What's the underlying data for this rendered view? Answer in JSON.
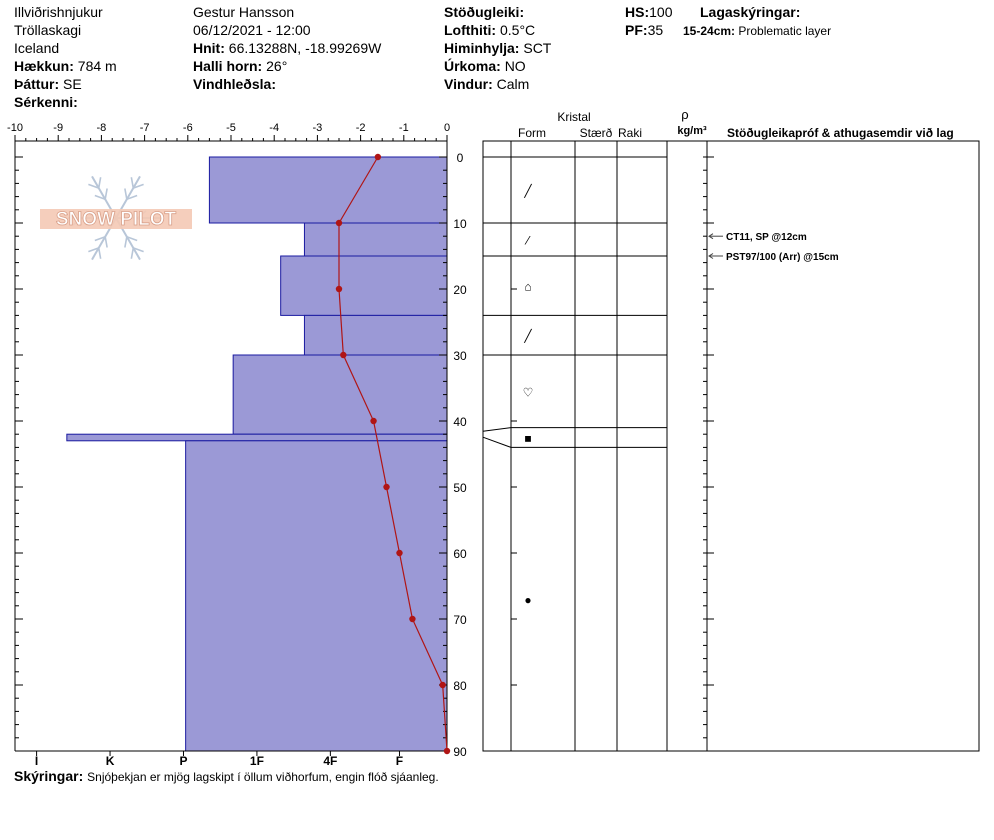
{
  "header": {
    "location": "Illviðrishnjukur",
    "region": "Tröllaskagi",
    "country": "Iceland",
    "elevation_label": "Hækkun:",
    "elevation_value": "784 m",
    "aspect_label": "Þáttur:",
    "aspect_value": "SE",
    "features_label": "Sérkenni:",
    "observer": "Gestur Hansson",
    "datetime": "06/12/2021 - 12:00",
    "coords_label": "Hnit:",
    "coords_value": "66.13288N, -18.99269W",
    "slope_label": "Halli horn:",
    "slope_value": "26°",
    "wind_loading_label": "Vindhleðsla:",
    "stability_label": "Stöðugleiki:",
    "air_temp_label": "Lofthiti:",
    "air_temp_value": "0.5°C",
    "sky_label": "Himinhylja:",
    "sky_value": "SCT",
    "precip_label": "Úrkoma:",
    "precip_value": "NO",
    "wind_label": "Vindur:",
    "wind_value": "Calm",
    "hs_label": "HS:",
    "hs_value": "100",
    "pf_label": "PF:",
    "pf_value": "35",
    "layer_notes_label": "Lagaskýringar:",
    "layer_note_range": "15-24cm:",
    "layer_note_text": "Problematic layer"
  },
  "columns": {
    "crystal": "Kristal",
    "form": "Form",
    "size": "Stærð",
    "moisture": "Raki",
    "density_symbol": "ρ",
    "density_unit": "kg/m³",
    "tests": "Stöðugleikapróf & athugasemdir við lag"
  },
  "logo_text": "SNOW PILOT",
  "tests": [
    {
      "label": "CT11, SP @12cm",
      "depth": 12
    },
    {
      "label": "PST97/100 (Arr) @15cm",
      "depth": 15
    }
  ],
  "crystal_symbols": [
    {
      "symbol": "╱",
      "depth": 5
    },
    {
      "symbol": "⁄",
      "depth": 12.5
    },
    {
      "symbol": "⌂",
      "depth": 19.5
    },
    {
      "symbol": "╱",
      "depth": 27
    },
    {
      "symbol": "♡",
      "depth": 35.5
    },
    {
      "symbol": "■",
      "depth": 42.5
    },
    {
      "symbol": "●",
      "depth": 67
    }
  ],
  "layer_boundaries": [
    0,
    10,
    15,
    24,
    30,
    41,
    44,
    90
  ],
  "footer": {
    "label": "Skýringar:",
    "text": "Snjóþekjan er mjög lagskipt í öllum viðhorfum, engin flóð sjáanleg."
  },
  "chart_data": {
    "type": "area",
    "top_axis_ticks": [
      "-10",
      "-9",
      "-8",
      "-7",
      "-6",
      "-5",
      "-4",
      "-3",
      "-2",
      "-1",
      "0"
    ],
    "temperature_xlim": [
      -10,
      0
    ],
    "hardness_ticks": [
      "I",
      "K",
      "P",
      "1F",
      "4F",
      "F"
    ],
    "depth_ticks": [
      "0",
      "10",
      "20",
      "30",
      "40",
      "50",
      "60",
      "70",
      "80",
      "90"
    ],
    "depth_ylim": [
      0,
      90
    ],
    "hardness_profile": [
      {
        "top": 0,
        "bottom": 10,
        "temp_equiv": -5.5
      },
      {
        "top": 10,
        "bottom": 15,
        "temp_equiv": -3.3
      },
      {
        "top": 15,
        "bottom": 24,
        "temp_equiv": -3.85
      },
      {
        "top": 24,
        "bottom": 30,
        "temp_equiv": -3.3
      },
      {
        "top": 30,
        "bottom": 42,
        "temp_equiv": -4.95
      },
      {
        "top": 42,
        "bottom": 43,
        "temp_equiv": -8.8
      },
      {
        "top": 43,
        "bottom": 90,
        "temp_equiv": -6.05
      }
    ],
    "temperature_profile": {
      "depth": [
        0,
        10,
        20,
        30,
        40,
        50,
        60,
        70,
        80,
        90
      ],
      "temp": [
        -1.6,
        -2.5,
        -2.5,
        -2.4,
        -1.7,
        -1.4,
        -1.1,
        -0.8,
        -0.1,
        0
      ]
    },
    "colors": {
      "hardness_fill": "#9b99d6",
      "hardness_stroke": "#1a1aa0",
      "temp": "#b01515"
    }
  }
}
